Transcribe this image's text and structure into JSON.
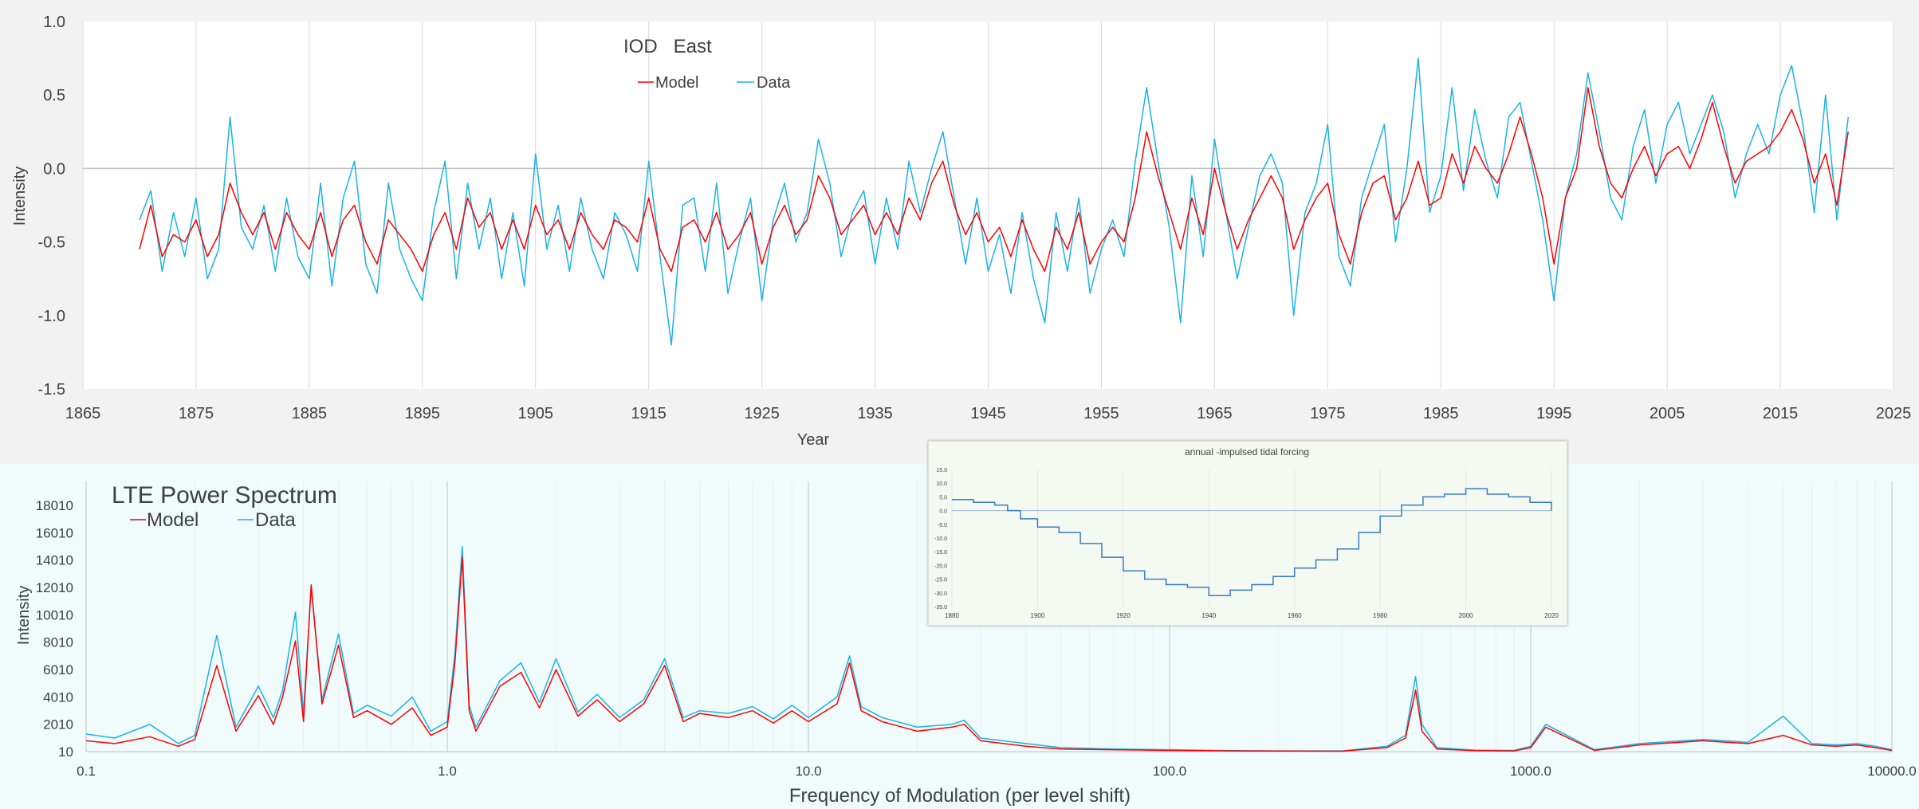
{
  "chart_data": [
    {
      "type": "line",
      "title": "IOD   East",
      "xlabel": "Year",
      "ylabel": "Intensity",
      "xlim": [
        1865,
        2025
      ],
      "ylim": [
        -1.5,
        1.0
      ],
      "x_ticks": [
        "1865",
        "1875",
        "1885",
        "1895",
        "1905",
        "1915",
        "1925",
        "1935",
        "1945",
        "1955",
        "1965",
        "1975",
        "1985",
        "1995",
        "2005",
        "2015",
        "2025"
      ],
      "y_ticks": [
        "1.0",
        "0.5",
        "0.0",
        "-0.5",
        "-1.0",
        "-1.5"
      ],
      "legend_position": "top-left",
      "grid": "vertical",
      "series": [
        {
          "name": "Model",
          "color": "#ff0000",
          "x": [
            1870,
            1871,
            1872,
            1873,
            1874,
            1875,
            1876,
            1877,
            1878,
            1879,
            1880,
            1881,
            1882,
            1883,
            1884,
            1885,
            1886,
            1887,
            1888,
            1889,
            1890,
            1891,
            1892,
            1893,
            1894,
            1895,
            1896,
            1897,
            1898,
            1899,
            1900,
            1901,
            1902,
            1903,
            1904,
            1905,
            1906,
            1907,
            1908,
            1909,
            1910,
            1911,
            1912,
            1913,
            1914,
            1915,
            1916,
            1917,
            1918,
            1919,
            1920,
            1921,
            1922,
            1923,
            1924,
            1925,
            1926,
            1927,
            1928,
            1929,
            1930,
            1931,
            1932,
            1933,
            1934,
            1935,
            1936,
            1937,
            1938,
            1939,
            1940,
            1941,
            1942,
            1943,
            1944,
            1945,
            1946,
            1947,
            1948,
            1949,
            1950,
            1951,
            1952,
            1953,
            1954,
            1955,
            1956,
            1957,
            1958,
            1959,
            1960,
            1961,
            1962,
            1963,
            1964,
            1965,
            1966,
            1967,
            1968,
            1969,
            1970,
            1971,
            1972,
            1973,
            1974,
            1975,
            1976,
            1977,
            1978,
            1979,
            1980,
            1981,
            1982,
            1983,
            1984,
            1985,
            1986,
            1987,
            1988,
            1989,
            1990,
            1991,
            1992,
            1993,
            1994,
            1995,
            1996,
            1997,
            1998,
            1999,
            2000,
            2001,
            2002,
            2003,
            2004,
            2005,
            2006,
            2007,
            2008,
            2009,
            2010,
            2011,
            2012,
            2013,
            2014,
            2015,
            2016,
            2017,
            2018,
            2019,
            2020,
            2021
          ],
          "values": [
            -0.55,
            -0.25,
            -0.6,
            -0.45,
            -0.5,
            -0.35,
            -0.6,
            -0.45,
            -0.1,
            -0.3,
            -0.45,
            -0.3,
            -0.55,
            -0.3,
            -0.45,
            -0.55,
            -0.3,
            -0.6,
            -0.35,
            -0.25,
            -0.5,
            -0.65,
            -0.35,
            -0.45,
            -0.55,
            -0.7,
            -0.45,
            -0.3,
            -0.55,
            -0.2,
            -0.4,
            -0.3,
            -0.55,
            -0.35,
            -0.55,
            -0.25,
            -0.45,
            -0.35,
            -0.55,
            -0.3,
            -0.45,
            -0.55,
            -0.35,
            -0.4,
            -0.5,
            -0.2,
            -0.55,
            -0.7,
            -0.4,
            -0.35,
            -0.5,
            -0.3,
            -0.55,
            -0.45,
            -0.3,
            -0.65,
            -0.4,
            -0.25,
            -0.45,
            -0.35,
            -0.05,
            -0.2,
            -0.45,
            -0.35,
            -0.25,
            -0.45,
            -0.3,
            -0.45,
            -0.2,
            -0.35,
            -0.1,
            0.05,
            -0.25,
            -0.45,
            -0.3,
            -0.5,
            -0.4,
            -0.6,
            -0.35,
            -0.55,
            -0.7,
            -0.4,
            -0.55,
            -0.3,
            -0.65,
            -0.5,
            -0.4,
            -0.5,
            -0.2,
            0.25,
            -0.05,
            -0.3,
            -0.55,
            -0.2,
            -0.45,
            0.0,
            -0.3,
            -0.55,
            -0.35,
            -0.2,
            -0.05,
            -0.2,
            -0.55,
            -0.35,
            -0.2,
            -0.1,
            -0.45,
            -0.65,
            -0.3,
            -0.1,
            -0.05,
            -0.35,
            -0.2,
            0.05,
            -0.25,
            -0.2,
            0.1,
            -0.1,
            0.15,
            0.0,
            -0.1,
            0.1,
            0.35,
            0.1,
            -0.2,
            -0.65,
            -0.2,
            0.0,
            0.55,
            0.15,
            -0.1,
            -0.2,
            0.0,
            0.15,
            -0.05,
            0.1,
            0.15,
            0.0,
            0.2,
            0.45,
            0.15,
            -0.1,
            0.05,
            0.1,
            0.15,
            0.25,
            0.4,
            0.2,
            -0.1,
            0.1,
            -0.25,
            0.25
          ]
        },
        {
          "name": "Data",
          "color": "#1ab3e6",
          "x": [
            1870,
            1871,
            1872,
            1873,
            1874,
            1875,
            1876,
            1877,
            1878,
            1879,
            1880,
            1881,
            1882,
            1883,
            1884,
            1885,
            1886,
            1887,
            1888,
            1889,
            1890,
            1891,
            1892,
            1893,
            1894,
            1895,
            1896,
            1897,
            1898,
            1899,
            1900,
            1901,
            1902,
            1903,
            1904,
            1905,
            1906,
            1907,
            1908,
            1909,
            1910,
            1911,
            1912,
            1913,
            1914,
            1915,
            1916,
            1917,
            1918,
            1919,
            1920,
            1921,
            1922,
            1923,
            1924,
            1925,
            1926,
            1927,
            1928,
            1929,
            1930,
            1931,
            1932,
            1933,
            1934,
            1935,
            1936,
            1937,
            1938,
            1939,
            1940,
            1941,
            1942,
            1943,
            1944,
            1945,
            1946,
            1947,
            1948,
            1949,
            1950,
            1951,
            1952,
            1953,
            1954,
            1955,
            1956,
            1957,
            1958,
            1959,
            1960,
            1961,
            1962,
            1963,
            1964,
            1965,
            1966,
            1967,
            1968,
            1969,
            1970,
            1971,
            1972,
            1973,
            1974,
            1975,
            1976,
            1977,
            1978,
            1979,
            1980,
            1981,
            1982,
            1983,
            1984,
            1985,
            1986,
            1987,
            1988,
            1989,
            1990,
            1991,
            1992,
            1993,
            1994,
            1995,
            1996,
            1997,
            1998,
            1999,
            2000,
            2001,
            2002,
            2003,
            2004,
            2005,
            2006,
            2007,
            2008,
            2009,
            2010,
            2011,
            2012,
            2013,
            2014,
            2015,
            2016,
            2017,
            2018,
            2019,
            2020,
            2021
          ],
          "values": [
            -0.35,
            -0.15,
            -0.7,
            -0.3,
            -0.6,
            -0.2,
            -0.75,
            -0.55,
            0.35,
            -0.4,
            -0.55,
            -0.25,
            -0.7,
            -0.2,
            -0.6,
            -0.75,
            -0.1,
            -0.8,
            -0.2,
            0.05,
            -0.65,
            -0.85,
            -0.1,
            -0.55,
            -0.75,
            -0.9,
            -0.3,
            0.05,
            -0.75,
            -0.1,
            -0.55,
            -0.2,
            -0.75,
            -0.3,
            -0.8,
            0.1,
            -0.55,
            -0.25,
            -0.7,
            -0.2,
            -0.55,
            -0.75,
            -0.3,
            -0.45,
            -0.7,
            0.05,
            -0.6,
            -1.2,
            -0.25,
            -0.2,
            -0.7,
            -0.1,
            -0.85,
            -0.5,
            -0.2,
            -0.9,
            -0.35,
            -0.1,
            -0.5,
            -0.3,
            0.2,
            -0.1,
            -0.6,
            -0.3,
            -0.15,
            -0.65,
            -0.2,
            -0.55,
            0.05,
            -0.3,
            0.0,
            0.25,
            -0.2,
            -0.65,
            -0.2,
            -0.7,
            -0.45,
            -0.85,
            -0.3,
            -0.75,
            -1.05,
            -0.3,
            -0.7,
            -0.2,
            -0.85,
            -0.55,
            -0.35,
            -0.6,
            0.05,
            0.55,
            0.05,
            -0.4,
            -1.05,
            -0.05,
            -0.6,
            0.2,
            -0.3,
            -0.75,
            -0.4,
            -0.05,
            0.1,
            -0.1,
            -1.0,
            -0.3,
            -0.1,
            0.3,
            -0.6,
            -0.8,
            -0.2,
            0.05,
            0.3,
            -0.5,
            0.0,
            0.75,
            -0.3,
            -0.05,
            0.55,
            -0.15,
            0.4,
            0.05,
            -0.2,
            0.35,
            0.45,
            0.05,
            -0.35,
            -0.9,
            -0.2,
            0.1,
            0.65,
            0.25,
            -0.2,
            -0.35,
            0.15,
            0.4,
            -0.1,
            0.3,
            0.45,
            0.1,
            0.3,
            0.5,
            0.25,
            -0.2,
            0.1,
            0.3,
            0.1,
            0.5,
            0.7,
            0.3,
            -0.3,
            0.5,
            -0.35,
            0.35
          ]
        }
      ]
    },
    {
      "type": "line",
      "title": "LTE Power Spectrum",
      "xlabel": "Frequency of Modulation (per level shift)",
      "ylabel": "Intensity",
      "x_scale": "log",
      "xlim": [
        0.1,
        10000
      ],
      "ylim": [
        10,
        18010
      ],
      "x_ticks": [
        "0.1",
        "1.0",
        "10.0",
        "100.0",
        "1000.0",
        "10000.0"
      ],
      "y_ticks": [
        "18010",
        "16010",
        "14010",
        "12010",
        "10010",
        "8010",
        "6010",
        "4010",
        "2010",
        "10"
      ],
      "legend_position": "top-left",
      "grid": "vertical",
      "series": [
        {
          "name": "Model",
          "color": "#ff0000",
          "x": [
            0.1,
            0.12,
            0.15,
            0.18,
            0.2,
            0.23,
            0.26,
            0.3,
            0.33,
            0.35,
            0.38,
            0.4,
            0.42,
            0.45,
            0.5,
            0.55,
            0.6,
            0.7,
            0.8,
            0.9,
            1.0,
            1.05,
            1.1,
            1.15,
            1.2,
            1.4,
            1.6,
            1.8,
            2.0,
            2.3,
            2.6,
            3.0,
            3.5,
            4.0,
            4.5,
            5,
            6,
            7,
            8,
            9,
            10,
            12,
            13,
            14,
            16,
            20,
            25,
            27,
            30,
            40,
            50,
            70,
            100,
            150,
            200,
            300,
            400,
            450,
            480,
            500,
            550,
            700,
            900,
            1000,
            1100,
            1500,
            2000,
            3000,
            4000,
            5000,
            6000,
            7000,
            8000,
            9000,
            10000
          ],
          "values": [
            800,
            600,
            1100,
            400,
            900,
            6300,
            1500,
            4100,
            2000,
            4000,
            8100,
            2200,
            12200,
            3500,
            7800,
            2500,
            3000,
            2000,
            3200,
            1200,
            1800,
            6500,
            14200,
            3000,
            1500,
            4800,
            5800,
            3200,
            6000,
            2600,
            3800,
            2200,
            3500,
            6300,
            2200,
            2800,
            2500,
            3000,
            2100,
            3000,
            2200,
            3500,
            6500,
            3000,
            2200,
            1500,
            1800,
            2000,
            800,
            400,
            200,
            150,
            100,
            60,
            50,
            40,
            300,
            1000,
            4500,
            1500,
            200,
            80,
            60,
            300,
            1800,
            100,
            500,
            800,
            600,
            1200,
            500,
            400,
            500,
            300,
            100
          ]
        },
        {
          "name": "Data",
          "color": "#1ab3e6",
          "x": [
            0.1,
            0.12,
            0.15,
            0.18,
            0.2,
            0.23,
            0.26,
            0.3,
            0.33,
            0.35,
            0.38,
            0.4,
            0.42,
            0.45,
            0.5,
            0.55,
            0.6,
            0.7,
            0.8,
            0.9,
            1.0,
            1.05,
            1.1,
            1.15,
            1.2,
            1.4,
            1.6,
            1.8,
            2.0,
            2.3,
            2.6,
            3.0,
            3.5,
            4.0,
            4.5,
            5,
            6,
            7,
            8,
            9,
            10,
            12,
            13,
            14,
            16,
            20,
            25,
            27,
            30,
            40,
            50,
            70,
            100,
            150,
            200,
            300,
            400,
            450,
            480,
            500,
            550,
            700,
            900,
            1000,
            1100,
            1500,
            2000,
            3000,
            4000,
            5000,
            6000,
            7000,
            8000,
            9000,
            10000
          ],
          "values": [
            1300,
            1000,
            2000,
            600,
            1200,
            8500,
            1800,
            4800,
            2500,
            4500,
            10200,
            2800,
            12000,
            3800,
            8600,
            2800,
            3400,
            2600,
            4000,
            1500,
            2200,
            7200,
            15000,
            3400,
            1800,
            5200,
            6500,
            3600,
            6800,
            2900,
            4200,
            2500,
            3800,
            6800,
            2500,
            3000,
            2800,
            3300,
            2400,
            3400,
            2500,
            4000,
            7000,
            3300,
            2500,
            1800,
            2000,
            2300,
            1000,
            600,
            300,
            200,
            150,
            80,
            60,
            60,
            400,
            1200,
            5500,
            2000,
            300,
            120,
            100,
            400,
            2000,
            150,
            600,
            900,
            700,
            2600,
            600,
            500,
            600,
            400,
            150
          ]
        }
      ]
    },
    {
      "type": "line",
      "title": "annual -impulsed tidal forcing",
      "xlim": [
        1880,
        2020
      ],
      "ylim": [
        -35,
        15
      ],
      "x_ticks": [
        "1880",
        "1900",
        "1920",
        "1940",
        "1960",
        "1980",
        "2000",
        "2020"
      ],
      "y_ticks": [
        "15.0",
        "10.0",
        "5.0",
        "0.0",
        "-5.0",
        "-10.0",
        "-15.0",
        "-20.0",
        "-25.0",
        "-30.0",
        "-35.0"
      ],
      "step": true,
      "series": [
        {
          "color": "#3a7cc3",
          "x": [
            1880,
            1885,
            1890,
            1893,
            1896,
            1900,
            1905,
            1910,
            1915,
            1920,
            1925,
            1930,
            1935,
            1940,
            1945,
            1950,
            1955,
            1960,
            1965,
            1970,
            1975,
            1980,
            1985,
            1990,
            1995,
            2000,
            2005,
            2010,
            2015,
            2020
          ],
          "values": [
            4,
            3,
            2,
            0,
            -3,
            -6,
            -8,
            -12,
            -17,
            -22,
            -25,
            -27,
            -28,
            -31,
            -29,
            -27,
            -24,
            -21,
            -18,
            -14,
            -8,
            -2,
            2,
            5,
            6,
            8,
            6,
            5,
            3,
            0
          ]
        }
      ]
    }
  ]
}
